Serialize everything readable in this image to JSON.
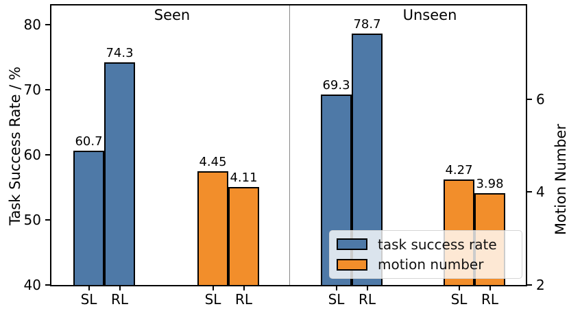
{
  "colors": {
    "task_success_rate": "#4E79A7",
    "motion_number": "#F28E2B",
    "bar_edge": "#000000",
    "separator": "#888888"
  },
  "chart_data": {
    "type": "bar",
    "panels": [
      {
        "title": "Seen"
      },
      {
        "title": "Unseen"
      }
    ],
    "left_axis": {
      "label": "Task Success Rate / %",
      "ticks": [
        40,
        50,
        60,
        70,
        80
      ],
      "range": [
        40,
        83
      ]
    },
    "right_axis": {
      "label": "Motion Number",
      "ticks": [
        2,
        4,
        6
      ],
      "range": [
        2,
        8.02
      ]
    },
    "legend": {
      "position": "lower right",
      "entries": [
        {
          "label": "task success rate",
          "color_key": "task_success_rate"
        },
        {
          "label": "motion number",
          "color_key": "motion_number"
        }
      ]
    },
    "groups": [
      {
        "panel": "Seen",
        "series": "task success rate",
        "color_key": "task_success_rate",
        "axis": "left",
        "bars": [
          {
            "x_label": "SL",
            "value": 60.7,
            "value_label": "60.7"
          },
          {
            "x_label": "RL",
            "value": 74.3,
            "value_label": "74.3"
          }
        ]
      },
      {
        "panel": "Seen",
        "series": "motion number",
        "color_key": "motion_number",
        "axis": "right",
        "bars": [
          {
            "x_label": "SL",
            "value": 4.45,
            "value_label": "4.45"
          },
          {
            "x_label": "RL",
            "value": 4.11,
            "value_label": "4.11"
          }
        ]
      },
      {
        "panel": "Unseen",
        "series": "task success rate",
        "color_key": "task_success_rate",
        "axis": "left",
        "bars": [
          {
            "x_label": "SL",
            "value": 69.3,
            "value_label": "69.3"
          },
          {
            "x_label": "RL",
            "value": 78.7,
            "value_label": "78.7"
          }
        ]
      },
      {
        "panel": "Unseen",
        "series": "motion number",
        "color_key": "motion_number",
        "axis": "right",
        "bars": [
          {
            "x_label": "SL",
            "value": 4.27,
            "value_label": "4.27"
          },
          {
            "x_label": "RL",
            "value": 3.98,
            "value_label": "3.98"
          }
        ]
      }
    ]
  }
}
